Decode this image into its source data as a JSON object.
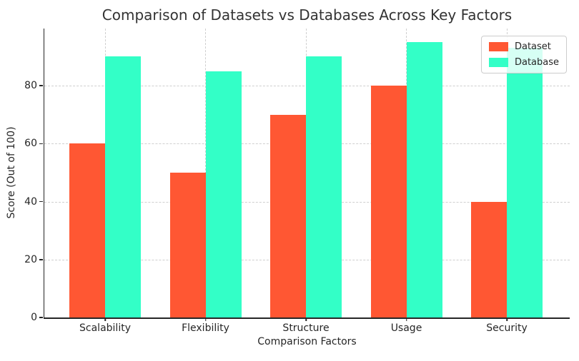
{
  "chart_data": {
    "type": "bar",
    "title": "Comparison of Datasets vs Databases Across Key Factors",
    "xlabel": "Comparison Factors",
    "ylabel": "Score (Out of 100)",
    "categories": [
      "Scalability",
      "Flexibility",
      "Structure",
      "Usage",
      "Security"
    ],
    "series": [
      {
        "name": "Dataset",
        "color": "#FF5733",
        "values": [
          60,
          50,
          70,
          80,
          40
        ]
      },
      {
        "name": "Database",
        "color": "#33FFC7",
        "values": [
          90,
          85,
          90,
          95,
          93
        ]
      }
    ],
    "ylim": [
      0,
      99.7
    ],
    "yticks": [
      0,
      20,
      40,
      60,
      80
    ],
    "grid": "dashed, horizontal and vertical",
    "legend": {
      "position": "upper-right",
      "entries": [
        "Dataset",
        "Database"
      ]
    }
  },
  "colors": {
    "background": "#ffffff",
    "title_text": "#333333",
    "axis_text": "#262626",
    "spine": "#262626",
    "gridline": "#cfcfcf",
    "dataset_bar": "#FF5733",
    "database_bar": "#33FFC7"
  }
}
